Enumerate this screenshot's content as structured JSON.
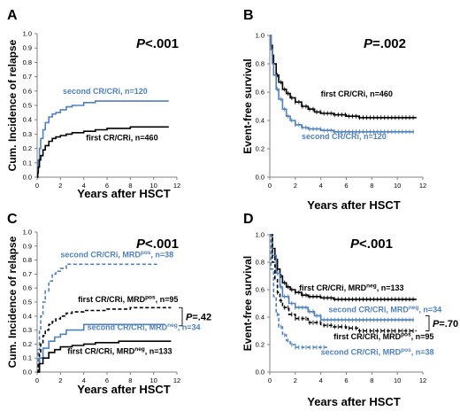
{
  "colors": {
    "black": "#000000",
    "blue": "#4f81bd"
  },
  "chart_data": [
    {
      "id": "A",
      "type": "line",
      "panel_label": "A",
      "p_value": "P<.001",
      "xlabel": "Years after HSCT",
      "ylabel": "Cum. Incidence of relapse",
      "xlim": [
        0,
        12
      ],
      "ylim": [
        0,
        1
      ],
      "xticks": [
        "0",
        "2",
        "4",
        "6",
        "8",
        "10",
        "12"
      ],
      "yticks": [
        "0.0",
        "0.1",
        "0.2",
        "0.3",
        "0.4",
        "0.5",
        "0.6",
        "0.7",
        "0.8",
        "0.9",
        "1.0"
      ],
      "series": [
        {
          "name": "second CR/CRi, n=120",
          "color": "blue",
          "style": "solid",
          "step": true,
          "x": [
            0,
            0.05,
            0.1,
            0.2,
            0.3,
            0.5,
            0.7,
            1.0,
            1.3,
            1.6,
            2.0,
            2.5,
            3.0,
            4.0,
            5.0,
            11.3
          ],
          "y": [
            0,
            0.05,
            0.12,
            0.2,
            0.27,
            0.33,
            0.38,
            0.42,
            0.44,
            0.45,
            0.47,
            0.49,
            0.5,
            0.52,
            0.53,
            0.53
          ]
        },
        {
          "name": "first CR/CRi, n=460",
          "color": "black",
          "style": "solid",
          "step": true,
          "x": [
            0,
            0.05,
            0.1,
            0.2,
            0.3,
            0.5,
            0.7,
            1.0,
            1.3,
            1.6,
            2.0,
            2.5,
            3.0,
            4.0,
            5.0,
            6.0,
            8.0,
            11.3
          ],
          "y": [
            0,
            0.03,
            0.07,
            0.12,
            0.15,
            0.19,
            0.22,
            0.25,
            0.27,
            0.28,
            0.29,
            0.3,
            0.31,
            0.32,
            0.33,
            0.34,
            0.35,
            0.35
          ]
        }
      ],
      "annotations": [
        {
          "text": "second CR/CRi, n=120",
          "color": "blue",
          "x": 2.2,
          "y": 0.58
        },
        {
          "text": "first CR/CRi, n=460",
          "color": "black",
          "x": 4.2,
          "y": 0.255
        }
      ]
    },
    {
      "id": "B",
      "type": "line",
      "panel_label": "B",
      "p_value": "P=.002",
      "xlabel": "Years after HSCT",
      "ylabel": "Event-free survival",
      "xlim": [
        0,
        12
      ],
      "ylim": [
        0,
        1
      ],
      "xticks": [
        "0",
        "2",
        "4",
        "6",
        "8",
        "10",
        "12"
      ],
      "yticks": [
        "0.0",
        "0.2",
        "0.4",
        "0.6",
        "0.8",
        "1.0"
      ],
      "series": [
        {
          "name": "first CR/CRi, n=460",
          "color": "black",
          "style": "solid",
          "step": true,
          "censor": true,
          "x": [
            0,
            0.1,
            0.2,
            0.3,
            0.5,
            0.7,
            1.0,
            1.3,
            1.6,
            2.0,
            2.5,
            3.0,
            3.5,
            4.0,
            5.0,
            6.0,
            7.0,
            8.0,
            11.5
          ],
          "y": [
            1.0,
            0.93,
            0.86,
            0.8,
            0.72,
            0.67,
            0.62,
            0.59,
            0.56,
            0.53,
            0.5,
            0.48,
            0.46,
            0.45,
            0.44,
            0.43,
            0.42,
            0.42,
            0.42
          ]
        },
        {
          "name": "second CR/CRi, n=120",
          "color": "blue",
          "style": "solid",
          "step": true,
          "censor": true,
          "x": [
            0,
            0.1,
            0.2,
            0.3,
            0.5,
            0.7,
            1.0,
            1.3,
            1.6,
            2.0,
            2.5,
            3.0,
            4.0,
            5.0,
            11.3
          ],
          "y": [
            1.0,
            0.9,
            0.8,
            0.72,
            0.62,
            0.55,
            0.48,
            0.43,
            0.4,
            0.37,
            0.35,
            0.34,
            0.33,
            0.32,
            0.32
          ]
        }
      ],
      "annotations": [
        {
          "text": "first CR/CRi, n=460",
          "color": "black",
          "x": 4.0,
          "y": 0.57
        },
        {
          "text": "second CR/CRi, n=120",
          "color": "blue",
          "x": 2.5,
          "y": 0.27
        }
      ]
    },
    {
      "id": "C",
      "type": "line",
      "panel_label": "C",
      "p_value": "P<.001",
      "xlabel": "Years after HSCT",
      "ylabel": "Cum. Incidence of relapse",
      "xlim": [
        0,
        12
      ],
      "ylim": [
        0,
        1
      ],
      "xticks": [
        "0",
        "2",
        "4",
        "6",
        "8",
        "10",
        "12"
      ],
      "yticks": [
        "0.0",
        "0.1",
        "0.2",
        "0.3",
        "0.4",
        "0.5",
        "0.6",
        "0.7",
        "0.8",
        "0.9",
        "1.0"
      ],
      "series": [
        {
          "name": "second CR/CRi, MRDpos, n=38",
          "color": "blue",
          "style": "dashed",
          "step": true,
          "x": [
            0,
            0.1,
            0.2,
            0.3,
            0.5,
            0.7,
            1.0,
            1.3,
            1.6,
            2.0,
            2.5,
            10.3
          ],
          "y": [
            0,
            0.16,
            0.3,
            0.4,
            0.5,
            0.58,
            0.65,
            0.7,
            0.72,
            0.74,
            0.77,
            0.77
          ]
        },
        {
          "name": "first CR/CRi, MRDpos, n=95",
          "color": "black",
          "style": "dashed",
          "step": true,
          "x": [
            0,
            0.1,
            0.2,
            0.3,
            0.5,
            0.7,
            1.0,
            1.3,
            1.6,
            2.0,
            2.5,
            3.0,
            4.0,
            6.0,
            8.0,
            11.5
          ],
          "y": [
            0,
            0.06,
            0.13,
            0.2,
            0.26,
            0.3,
            0.34,
            0.36,
            0.38,
            0.4,
            0.42,
            0.43,
            0.44,
            0.45,
            0.46,
            0.46
          ]
        },
        {
          "name": "second CR/CRi, MRDneg, n=34",
          "color": "blue",
          "style": "solid",
          "step": true,
          "x": [
            0,
            0.2,
            0.5,
            1.0,
            1.5,
            2.0,
            2.5,
            3.5,
            4.0,
            11.0
          ],
          "y": [
            0,
            0.1,
            0.17,
            0.22,
            0.25,
            0.27,
            0.3,
            0.3,
            0.34,
            0.34
          ]
        },
        {
          "name": "first CR/CRi, MRDneg, n=133",
          "color": "black",
          "style": "solid",
          "step": true,
          "x": [
            0,
            0.2,
            0.5,
            1.0,
            1.5,
            2.0,
            3.0,
            4.0,
            5.0,
            7.0,
            11.5
          ],
          "y": [
            0,
            0.06,
            0.1,
            0.14,
            0.16,
            0.18,
            0.19,
            0.2,
            0.21,
            0.22,
            0.22
          ]
        }
      ],
      "annotations": [
        {
          "text": "second CR/CRi, MRD",
          "sup": "pos",
          "tail": ", n=38",
          "color": "blue",
          "x": 2.0,
          "y": 0.82
        },
        {
          "text": "first CR/CRi, MRD",
          "sup": "pos",
          "tail": ", n=95",
          "color": "black",
          "x": 3.5,
          "y": 0.5
        },
        {
          "text": "second CR/CRi, MRD",
          "sup": "neg",
          "tail": ", n=34",
          "color": "blue",
          "x": 4.3,
          "y": 0.3
        },
        {
          "text": "first CR/CRi, MRD",
          "sup": "neg",
          "tail": ", n=133",
          "color": "black",
          "x": 2.6,
          "y": 0.13
        }
      ],
      "bracket_p": "P=.42"
    },
    {
      "id": "D",
      "type": "line",
      "panel_label": "D",
      "p_value": "P<.001",
      "xlabel": "Years after HSCT",
      "ylabel": "Event-free survival",
      "xlim": [
        0,
        12
      ],
      "ylim": [
        0,
        1
      ],
      "xticks": [
        "0",
        "2",
        "4",
        "6",
        "8",
        "10",
        "12"
      ],
      "yticks": [
        "0.0",
        "0.2",
        "0.4",
        "0.6",
        "0.8",
        "1.0"
      ],
      "series": [
        {
          "name": "first CR/CRi, MRDneg, n=133",
          "color": "black",
          "style": "solid",
          "step": true,
          "censor": true,
          "x": [
            0,
            0.2,
            0.4,
            0.6,
            0.8,
            1.0,
            1.3,
            1.6,
            2.0,
            2.5,
            3.0,
            4.0,
            5.0,
            6.0,
            11.5
          ],
          "y": [
            1.0,
            0.9,
            0.82,
            0.75,
            0.7,
            0.65,
            0.62,
            0.6,
            0.58,
            0.56,
            0.55,
            0.54,
            0.53,
            0.53,
            0.53
          ]
        },
        {
          "name": "second CR/CRi, MRDneg, n=34",
          "color": "blue",
          "style": "solid",
          "step": true,
          "censor": true,
          "x": [
            0,
            0.2,
            0.5,
            0.8,
            1.0,
            1.5,
            2.0,
            3.0,
            3.5,
            4.0,
            11.3
          ],
          "y": [
            1.0,
            0.85,
            0.72,
            0.62,
            0.55,
            0.5,
            0.47,
            0.44,
            0.41,
            0.38,
            0.38
          ]
        },
        {
          "name": "first CR/CRi, MRDpos, n=95",
          "color": "black",
          "style": "dashed",
          "step": true,
          "censor": true,
          "x": [
            0,
            0.2,
            0.4,
            0.6,
            0.8,
            1.0,
            1.5,
            2.0,
            3.0,
            4.0,
            5.0,
            6.0,
            7.0,
            11.5
          ],
          "y": [
            1.0,
            0.8,
            0.68,
            0.58,
            0.52,
            0.47,
            0.42,
            0.39,
            0.36,
            0.34,
            0.33,
            0.32,
            0.3,
            0.3
          ]
        },
        {
          "name": "second CR/CRi, MRDpos, n=38",
          "color": "blue",
          "style": "dashed",
          "step": true,
          "censor": true,
          "x": [
            0,
            0.1,
            0.3,
            0.5,
            0.7,
            1.0,
            1.3,
            1.6,
            2.0,
            2.5,
            4.5
          ],
          "y": [
            1.0,
            0.75,
            0.55,
            0.42,
            0.33,
            0.27,
            0.23,
            0.2,
            0.18,
            0.18,
            0.18
          ]
        }
      ],
      "annotations": [
        {
          "text": "first CR/CRi, MRD",
          "sup": "neg",
          "tail": ", n=133",
          "color": "black",
          "x": 2.3,
          "y": 0.595
        },
        {
          "text": "second CR/CRi, MRD",
          "sup": "neg",
          "tail": ", n=34",
          "color": "blue",
          "x": 4.6,
          "y": 0.435
        },
        {
          "text": "first CR/CRi, MRD",
          "sup": "pos",
          "tail": ", n=95",
          "color": "black",
          "x": 5.0,
          "y": 0.24
        },
        {
          "text": "second CR/CRi, MRD",
          "sup": "pos",
          "tail": ", n=38",
          "color": "blue",
          "x": 4.0,
          "y": 0.125
        }
      ],
      "bracket_p": "P=.70"
    }
  ]
}
